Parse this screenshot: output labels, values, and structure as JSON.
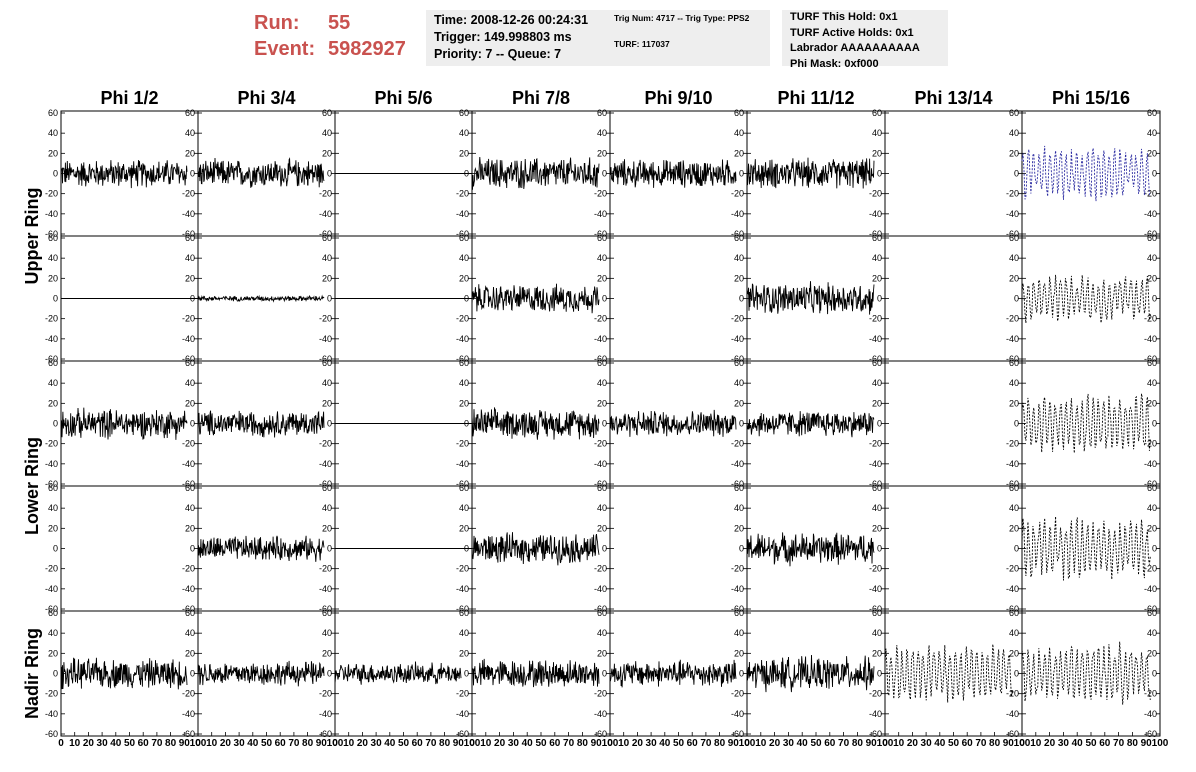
{
  "header": {
    "run_label": "Run:",
    "run_value": "55",
    "event_label": "Event:",
    "event_value": "5982927",
    "time": "Time: 2008-12-26 00:24:31",
    "trigger": "Trigger: 149.998803 ms",
    "priority": "Priority: 7 -- Queue: 7",
    "trig_num": "Trig Num: 4717 -- Trig Type: PPS2",
    "turf_num": "TURF: 117037",
    "turf_this_hold": "TURF This Hold: 0x1",
    "turf_active_holds": "TURF Active Holds: 0x1",
    "labrador": "Labrador AAAAAAAAAA",
    "phi_mask": "Phi Mask: 0xf000"
  },
  "chart_data": {
    "type": "line",
    "columns": [
      "Phi 1/2",
      "Phi 3/4",
      "Phi 5/6",
      "Phi 7/8",
      "Phi 9/10",
      "Phi 11/12",
      "Phi 13/14",
      "Phi 15/16"
    ],
    "rows": [
      "Upper Ring",
      "Lower Ring",
      "Nadir Ring"
    ],
    "xlim": [
      0,
      100
    ],
    "ylim": [
      -60,
      60
    ],
    "xticks": [
      "0",
      "10",
      "20",
      "30",
      "40",
      "50",
      "60",
      "70",
      "80",
      "90",
      "100"
    ],
    "yticks": [
      "-60",
      "-40",
      "-20",
      "0",
      "20",
      "40",
      "60"
    ],
    "colors": {
      "waveform": "#000000",
      "highlight": "#2a2aa0"
    },
    "panels": [
      [
        {
          "amp": 16,
          "style": "solid"
        },
        {
          "amp": 16,
          "style": "solid"
        },
        {
          "amp": 0,
          "style": "flat"
        },
        {
          "amp": 18,
          "style": "solid"
        },
        {
          "amp": 16,
          "style": "solid"
        },
        {
          "amp": 17,
          "style": "solid"
        },
        {
          "amp": 0,
          "style": "none"
        },
        {
          "amp": 28,
          "style": "dashed-blue"
        }
      ],
      [
        {
          "amp": 0,
          "style": "flat"
        },
        {
          "amp": 3,
          "style": "solid"
        },
        {
          "amp": 0,
          "style": "flat"
        },
        {
          "amp": 16,
          "style": "solid"
        },
        {
          "amp": 0,
          "style": "none"
        },
        {
          "amp": 18,
          "style": "solid"
        },
        {
          "amp": 0,
          "style": "none"
        },
        {
          "amp": 25,
          "style": "dashed"
        }
      ],
      [
        {
          "amp": 17,
          "style": "solid"
        },
        {
          "amp": 15,
          "style": "solid"
        },
        {
          "amp": 0,
          "style": "flat"
        },
        {
          "amp": 17,
          "style": "solid"
        },
        {
          "amp": 15,
          "style": "solid"
        },
        {
          "amp": 15,
          "style": "solid"
        },
        {
          "amp": 0,
          "style": "none"
        },
        {
          "amp": 30,
          "style": "dashed"
        }
      ],
      [
        {
          "amp": 0,
          "style": "none"
        },
        {
          "amp": 14,
          "style": "solid"
        },
        {
          "amp": 0,
          "style": "flat"
        },
        {
          "amp": 17,
          "style": "solid"
        },
        {
          "amp": 0,
          "style": "none"
        },
        {
          "amp": 18,
          "style": "solid"
        },
        {
          "amp": 0,
          "style": "none"
        },
        {
          "amp": 32,
          "style": "dashed"
        }
      ],
      [
        {
          "amp": 17,
          "style": "solid"
        },
        {
          "amp": 14,
          "style": "solid"
        },
        {
          "amp": 12,
          "style": "solid"
        },
        {
          "amp": 16,
          "style": "solid"
        },
        {
          "amp": 15,
          "style": "solid"
        },
        {
          "amp": 19,
          "style": "solid"
        },
        {
          "amp": 30,
          "style": "dashed"
        },
        {
          "amp": 32,
          "style": "dashed"
        }
      ]
    ]
  }
}
